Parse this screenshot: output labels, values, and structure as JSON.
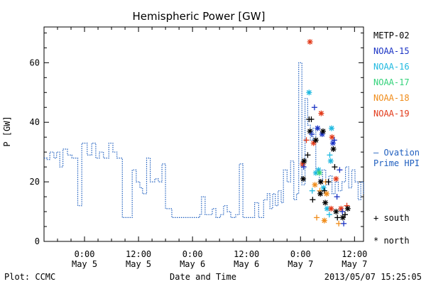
{
  "chart_data": {
    "type": "line",
    "title": "Hemispheric Power [GW]",
    "xlabel": "Date and Time",
    "ylabel": "P [GW]",
    "ylim": [
      0,
      72
    ],
    "yticks": [
      "0",
      "20",
      "40",
      "60"
    ],
    "xlim_hours": [
      -9,
      62
    ],
    "x_ticks": [
      {
        "hours": 0,
        "line1": "0:00",
        "line2": "May 5"
      },
      {
        "hours": 12,
        "line1": "12:00",
        "line2": "May 5"
      },
      {
        "hours": 24,
        "line1": "0:00",
        "line2": "May 6"
      },
      {
        "hours": 36,
        "line1": "12:00",
        "line2": "May 6"
      },
      {
        "hours": 48,
        "line1": "0:00",
        "line2": "May 7"
      },
      {
        "hours": 60,
        "line1": "12:00",
        "line2": "May 7"
      }
    ],
    "footer_left": "Plot: CCMC",
    "footer_right": "2013/05/07 15:25:05",
    "ovation": {
      "label_line1": "— Ovation",
      "label_line2": "Prime HPI",
      "color": "#1f5fbf",
      "points": [
        [
          -9,
          28
        ],
        [
          -8.3,
          27.5
        ],
        [
          -7.7,
          30
        ],
        [
          -6.8,
          28
        ],
        [
          -6.2,
          30
        ],
        [
          -5.5,
          25
        ],
        [
          -4.8,
          31
        ],
        [
          -3.8,
          29
        ],
        [
          -2.8,
          28
        ],
        [
          -1.5,
          12
        ],
        [
          -0.6,
          33
        ],
        [
          0.6,
          29
        ],
        [
          1.6,
          33
        ],
        [
          2.5,
          28
        ],
        [
          3.3,
          30
        ],
        [
          4.2,
          28
        ],
        [
          5.4,
          33
        ],
        [
          6.3,
          30
        ],
        [
          7.2,
          28
        ],
        [
          8.4,
          8
        ],
        [
          10.6,
          24
        ],
        [
          11.5,
          20
        ],
        [
          12.3,
          18
        ],
        [
          12.9,
          16
        ],
        [
          13.8,
          28
        ],
        [
          14.6,
          20
        ],
        [
          15.6,
          21
        ],
        [
          16.4,
          20
        ],
        [
          17.2,
          26
        ],
        [
          18,
          11
        ],
        [
          19.4,
          8
        ],
        [
          21,
          8
        ],
        [
          23,
          8
        ],
        [
          24.6,
          8
        ],
        [
          25.6,
          9
        ],
        [
          26,
          15
        ],
        [
          26.8,
          9
        ],
        [
          28.4,
          11
        ],
        [
          29.2,
          8
        ],
        [
          30.2,
          9
        ],
        [
          30.9,
          12
        ],
        [
          31.7,
          10
        ],
        [
          32.5,
          8
        ],
        [
          33.6,
          9
        ],
        [
          34.4,
          26
        ],
        [
          35.2,
          8
        ],
        [
          37.8,
          13
        ],
        [
          38.7,
          8
        ],
        [
          39.8,
          14
        ],
        [
          40.6,
          16
        ],
        [
          41.2,
          11
        ],
        [
          41.8,
          16
        ],
        [
          42.4,
          12
        ],
        [
          43,
          17
        ],
        [
          43.7,
          13
        ],
        [
          44.2,
          24
        ],
        [
          45,
          20
        ],
        [
          45.8,
          27
        ],
        [
          46.5,
          14
        ],
        [
          47.1,
          16
        ],
        [
          47.6,
          60
        ],
        [
          48.3,
          19
        ],
        [
          49,
          48
        ],
        [
          49.6,
          39
        ],
        [
          50.2,
          34
        ],
        [
          50.8,
          38
        ],
        [
          51.4,
          24
        ],
        [
          52.2,
          20
        ],
        [
          52.9,
          24
        ],
        [
          53.6,
          19
        ],
        [
          54.3,
          22
        ],
        [
          55,
          16
        ],
        [
          55.7,
          20
        ],
        [
          56.4,
          17
        ],
        [
          57.2,
          20
        ],
        [
          58,
          25
        ],
        [
          58.7,
          18
        ],
        [
          59.4,
          24
        ],
        [
          60.1,
          20
        ],
        [
          60.8,
          14
        ],
        [
          61.4,
          20
        ],
        [
          62,
          16
        ]
      ]
    },
    "satellites": [
      {
        "name": "METP-02",
        "color": "#000000"
      },
      {
        "name": "NOAA-15",
        "color": "#1a33c4"
      },
      {
        "name": "NOAA-16",
        "color": "#1fb9e0"
      },
      {
        "name": "NOAA-17",
        "color": "#33d27a"
      },
      {
        "name": "NOAA-18",
        "color": "#f08c1a"
      },
      {
        "name": "NOAA-19",
        "color": "#e23a1a"
      }
    ],
    "marker_legend": {
      "south": "+ south",
      "north": "* north"
    },
    "points": [
      [
        48.5,
        26,
        "#e23a1a",
        "*"
      ],
      [
        48.8,
        27,
        "#000000",
        "*"
      ],
      [
        48.6,
        21,
        "#000000",
        "*"
      ],
      [
        48.7,
        25,
        "#1a33c4",
        "+"
      ],
      [
        49.3,
        34,
        "#e23a1a",
        "+"
      ],
      [
        49.6,
        29,
        "#000000",
        "+"
      ],
      [
        49.9,
        50,
        "#1fb9e0",
        "*"
      ],
      [
        50.1,
        67,
        "#e23a1a",
        "*"
      ],
      [
        49.9,
        41,
        "#000000",
        "+"
      ],
      [
        50.1,
        37,
        "#000000",
        "*"
      ],
      [
        50.4,
        41,
        "#000000",
        "+"
      ],
      [
        50.5,
        36,
        "#1a33c4",
        "+"
      ],
      [
        50.6,
        17,
        "#1fb9e0",
        "+"
      ],
      [
        50.7,
        14,
        "#000000",
        "+"
      ],
      [
        50.9,
        33,
        "#e23a1a",
        "*"
      ],
      [
        51.1,
        45,
        "#1a33c4",
        "+"
      ],
      [
        51.4,
        34,
        "#000000",
        "*"
      ],
      [
        51.4,
        23,
        "#1fb9e0",
        "*"
      ],
      [
        51.2,
        19,
        "#f08c1a",
        "*"
      ],
      [
        51.6,
        8,
        "#f08c1a",
        "+"
      ],
      [
        51.8,
        38,
        "#1a33c4",
        "*"
      ],
      [
        52,
        24,
        "#1fb9e0",
        "*"
      ],
      [
        52.2,
        23,
        "#33d27a",
        "*"
      ],
      [
        52.3,
        17,
        "#f08c1a",
        "+"
      ],
      [
        52.4,
        16,
        "#000000",
        "*"
      ],
      [
        52.5,
        20,
        "#000000",
        "*"
      ],
      [
        52.6,
        43,
        "#e23a1a",
        "*"
      ],
      [
        52.8,
        36,
        "#1a33c4",
        "*"
      ],
      [
        53,
        37,
        "#000000",
        "*"
      ],
      [
        53.1,
        18,
        "#1fb9e0",
        "*"
      ],
      [
        53.3,
        17,
        "#000000",
        "+"
      ],
      [
        53.3,
        7,
        "#f08c1a",
        "*"
      ],
      [
        53.5,
        13,
        "#000000",
        "*"
      ],
      [
        53.6,
        20,
        "#f08c1a",
        "+"
      ],
      [
        53.8,
        16,
        "#f08c1a",
        "*"
      ],
      [
        53.9,
        11,
        "#1fb9e0",
        "*"
      ],
      [
        54.2,
        20,
        "#000000",
        "+"
      ],
      [
        54.4,
        9,
        "#1fb9e0",
        "+"
      ],
      [
        54.5,
        29,
        "#1fb9e0",
        "+"
      ],
      [
        54.7,
        27,
        "#1fb9e0",
        "*"
      ],
      [
        54.8,
        11,
        "#e23a1a",
        "*"
      ],
      [
        54.9,
        38,
        "#1fb9e0",
        "*"
      ],
      [
        55,
        35,
        "#e23a1a",
        "*"
      ],
      [
        55.2,
        33,
        "#1a33c4",
        "*"
      ],
      [
        55.3,
        31,
        "#000000",
        "*"
      ],
      [
        55.5,
        34,
        "#1a33c4",
        "+"
      ],
      [
        55.6,
        25,
        "#000000",
        "+"
      ],
      [
        55.9,
        21,
        "#e23a1a",
        "*"
      ],
      [
        55.9,
        10,
        "#000000",
        "*"
      ],
      [
        56.1,
        15,
        "#1a33c4",
        "+"
      ],
      [
        56.2,
        8,
        "#000000",
        "+"
      ],
      [
        56.5,
        6,
        "#f08c1a",
        "+"
      ],
      [
        56.7,
        24,
        "#1a33c4",
        "+"
      ],
      [
        57,
        11,
        "#e23a1a",
        "*"
      ],
      [
        57.3,
        10,
        "#1a33c4",
        "+"
      ],
      [
        57.4,
        8,
        "#000000",
        "*"
      ],
      [
        57.6,
        6,
        "#1a33c4",
        "+"
      ],
      [
        57.9,
        9,
        "#000000",
        "+"
      ],
      [
        58.3,
        12,
        "#e23a1a",
        "+"
      ],
      [
        58.5,
        11,
        "#000000",
        "*"
      ]
    ]
  }
}
